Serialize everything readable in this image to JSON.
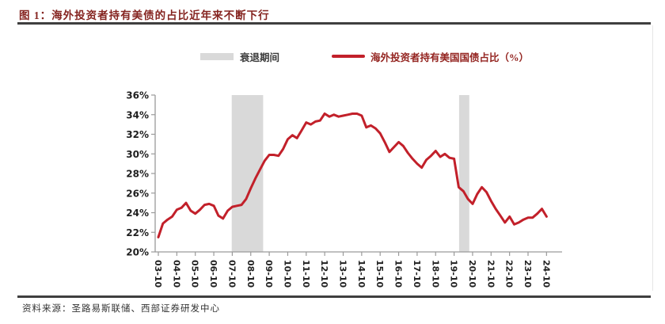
{
  "figure": {
    "title": "图 1：海外投资者持有美债的占比近年来不断下行",
    "source": "资料来源：圣路易斯联储、西部证券研发中心"
  },
  "legend": [
    {
      "type": "band",
      "label": "衰退期间",
      "color": "#d9d9d9"
    },
    {
      "type": "line",
      "label": "海外投资者持有美国国债占比（%）",
      "color": "#c2202a"
    }
  ],
  "colors": {
    "series_red": "#c2202a",
    "band_gray": "#d9d9d9",
    "title_red": "#852420",
    "rule_dark": "#3f3f3f",
    "axis_gray": "#9a9a9a",
    "tick_text": "#1f1f1f"
  },
  "chart_data": {
    "type": "line",
    "title": "海外投资者持有美国国债占比（%）",
    "xlabel": "",
    "ylabel": "",
    "ylim": [
      20,
      36
    ],
    "ytick_step": 2,
    "ytick_labels": [
      "20%",
      "22%",
      "24%",
      "26%",
      "28%",
      "30%",
      "32%",
      "34%",
      "36%"
    ],
    "x_tick_labels": [
      "03-10",
      "04-10",
      "05-10",
      "06-10",
      "07-10",
      "08-10",
      "09-10",
      "10-10",
      "11-10",
      "12-10",
      "13-10",
      "14-10",
      "15-10",
      "16-10",
      "17-10",
      "18-10",
      "19-10",
      "20-10",
      "21-10",
      "22-10",
      "23-10",
      "24-10"
    ],
    "x_range_years": [
      2003.83,
      2024.83
    ],
    "grid": false,
    "legend_position": "top",
    "recession_bands": [
      [
        2007.8,
        2009.5
      ],
      [
        2020.1,
        2020.65
      ]
    ],
    "series": [
      {
        "name": "海外投资者持有美国国债占比（%）",
        "color": "#c2202a",
        "t_start": 2003.83,
        "t_step": 0.25,
        "values": [
          21.5,
          22.9,
          23.3,
          23.6,
          24.3,
          24.5,
          25.0,
          24.2,
          23.9,
          24.3,
          24.8,
          24.9,
          24.7,
          23.7,
          23.4,
          24.2,
          24.6,
          24.7,
          24.8,
          25.4,
          26.5,
          27.5,
          28.4,
          29.3,
          29.9,
          29.9,
          29.8,
          30.5,
          31.5,
          31.9,
          31.6,
          32.4,
          33.2,
          33.0,
          33.3,
          33.4,
          34.1,
          33.8,
          34.0,
          33.8,
          33.9,
          34.0,
          34.1,
          34.1,
          33.9,
          32.7,
          32.9,
          32.6,
          32.1,
          31.2,
          30.2,
          30.7,
          31.2,
          30.8,
          30.1,
          29.5,
          29.0,
          28.6,
          29.4,
          29.8,
          30.3,
          29.7,
          30.0,
          29.6,
          29.5,
          26.6,
          26.2,
          25.4,
          24.9,
          25.9,
          26.6,
          26.1,
          25.2,
          24.4,
          23.7,
          23.0,
          23.6,
          22.8,
          23.0,
          23.3,
          23.5,
          23.5,
          23.9,
          24.4,
          23.6
        ]
      }
    ]
  }
}
